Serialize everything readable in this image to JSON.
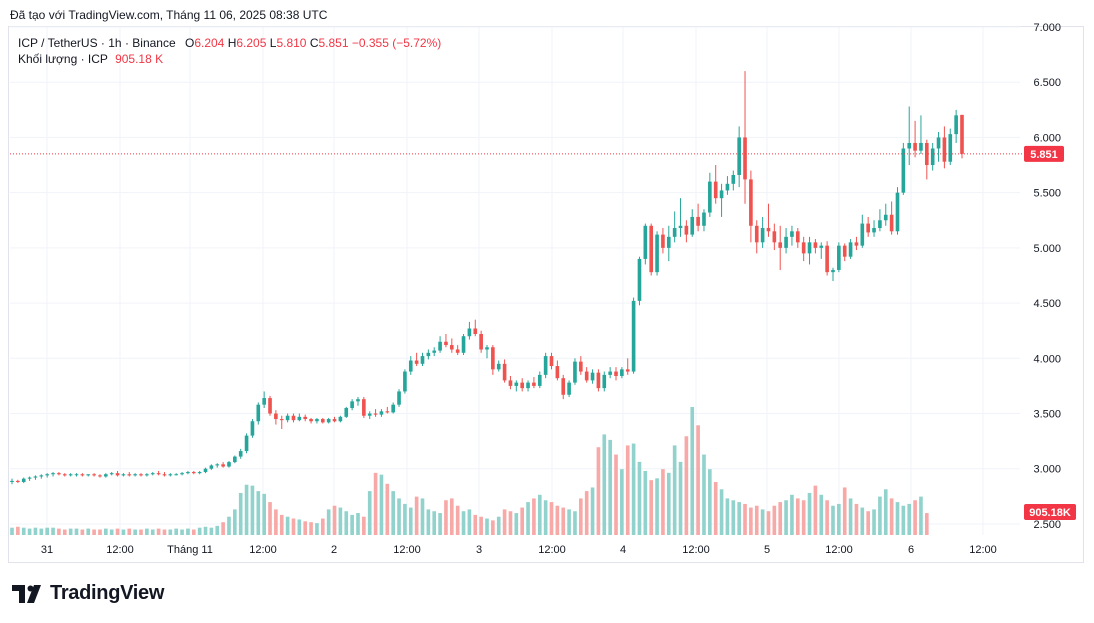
{
  "header": {
    "text": "Đã tạo với TradingView.com, Tháng 11 06, 2025 08:38 UTC"
  },
  "legend": {
    "symbol": "ICP / TetherUS · 1h · Binance",
    "open_label": "O",
    "open": "6.204",
    "high_label": "H",
    "high": "6.205",
    "low_label": "L",
    "low": "5.810",
    "close_label": "C",
    "close": "5.851",
    "change": "−0.355 (−5.72%)",
    "volume_label": "Khối lượng · ICP",
    "volume_value": "905.18 K"
  },
  "logo": {
    "text": "TradingView"
  },
  "colors": {
    "up": "#26a69a",
    "down": "#ef5350",
    "up_vol": "#92d2cc",
    "down_vol": "#f7a9a7",
    "grid": "#f0f3fa"
  },
  "chart_data": {
    "type": "candlestick",
    "title": "ICP / TetherUS · 1h · Binance",
    "y_axis": {
      "min": 2.4,
      "max": 7.0,
      "ticks": [
        "7.000",
        "6.500",
        "6.000",
        "5.500",
        "5.000",
        "4.500",
        "4.000",
        "3.500",
        "3.000",
        "2.500"
      ]
    },
    "x_axis": {
      "ticks": [
        "31",
        "12:00",
        "Tháng 11",
        "12:00",
        "2",
        "12:00",
        "3",
        "12:00",
        "4",
        "12:00",
        "5",
        "12:00",
        "6",
        "12:00"
      ]
    },
    "last_price_label": "5.851",
    "volume_label": "905.18K",
    "candles": [
      {
        "o": 2.88,
        "h": 2.91,
        "l": 2.86,
        "c": 2.89
      },
      {
        "o": 2.89,
        "h": 2.9,
        "l": 2.87,
        "c": 2.88
      },
      {
        "o": 2.88,
        "h": 2.92,
        "l": 2.87,
        "c": 2.91
      },
      {
        "o": 2.91,
        "h": 2.93,
        "l": 2.89,
        "c": 2.92
      },
      {
        "o": 2.92,
        "h": 2.94,
        "l": 2.9,
        "c": 2.93
      },
      {
        "o": 2.93,
        "h": 2.95,
        "l": 2.91,
        "c": 2.94
      },
      {
        "o": 2.94,
        "h": 2.96,
        "l": 2.92,
        "c": 2.95
      },
      {
        "o": 2.95,
        "h": 2.97,
        "l": 2.93,
        "c": 2.96
      },
      {
        "o": 2.96,
        "h": 2.97,
        "l": 2.94,
        "c": 2.95
      },
      {
        "o": 2.95,
        "h": 2.96,
        "l": 2.93,
        "c": 2.94
      },
      {
        "o": 2.94,
        "h": 2.96,
        "l": 2.93,
        "c": 2.95
      },
      {
        "o": 2.95,
        "h": 2.96,
        "l": 2.93,
        "c": 2.95
      },
      {
        "o": 2.95,
        "h": 2.96,
        "l": 2.93,
        "c": 2.94
      },
      {
        "o": 2.94,
        "h": 2.95,
        "l": 2.93,
        "c": 2.95
      },
      {
        "o": 2.95,
        "h": 2.96,
        "l": 2.93,
        "c": 2.94
      },
      {
        "o": 2.94,
        "h": 2.95,
        "l": 2.92,
        "c": 2.93
      },
      {
        "o": 2.93,
        "h": 2.96,
        "l": 2.92,
        "c": 2.95
      },
      {
        "o": 2.95,
        "h": 2.97,
        "l": 2.94,
        "c": 2.96
      },
      {
        "o": 2.96,
        "h": 2.98,
        "l": 2.93,
        "c": 2.94
      },
      {
        "o": 2.94,
        "h": 2.96,
        "l": 2.93,
        "c": 2.95
      },
      {
        "o": 2.95,
        "h": 2.97,
        "l": 2.93,
        "c": 2.94
      },
      {
        "o": 2.94,
        "h": 2.96,
        "l": 2.93,
        "c": 2.95
      },
      {
        "o": 2.95,
        "h": 2.96,
        "l": 2.93,
        "c": 2.94
      },
      {
        "o": 2.94,
        "h": 2.96,
        "l": 2.93,
        "c": 2.95
      },
      {
        "o": 2.95,
        "h": 2.97,
        "l": 2.94,
        "c": 2.96
      },
      {
        "o": 2.96,
        "h": 2.98,
        "l": 2.94,
        "c": 2.95
      },
      {
        "o": 2.95,
        "h": 2.97,
        "l": 2.93,
        "c": 2.94
      },
      {
        "o": 2.94,
        "h": 2.96,
        "l": 2.93,
        "c": 2.95
      },
      {
        "o": 2.95,
        "h": 2.96,
        "l": 2.94,
        "c": 2.95
      },
      {
        "o": 2.95,
        "h": 2.97,
        "l": 2.94,
        "c": 2.96
      },
      {
        "o": 2.96,
        "h": 2.98,
        "l": 2.95,
        "c": 2.97
      },
      {
        "o": 2.97,
        "h": 2.98,
        "l": 2.95,
        "c": 2.96
      },
      {
        "o": 2.96,
        "h": 2.98,
        "l": 2.95,
        "c": 2.97
      },
      {
        "o": 2.97,
        "h": 3.01,
        "l": 2.96,
        "c": 3.0
      },
      {
        "o": 3.0,
        "h": 3.04,
        "l": 2.99,
        "c": 3.03
      },
      {
        "o": 3.03,
        "h": 3.05,
        "l": 3.01,
        "c": 3.04
      },
      {
        "o": 3.04,
        "h": 3.06,
        "l": 3.01,
        "c": 3.02
      },
      {
        "o": 3.02,
        "h": 3.07,
        "l": 3.01,
        "c": 3.06
      },
      {
        "o": 3.06,
        "h": 3.12,
        "l": 3.05,
        "c": 3.11
      },
      {
        "o": 3.11,
        "h": 3.18,
        "l": 3.09,
        "c": 3.16
      },
      {
        "o": 3.16,
        "h": 3.32,
        "l": 3.14,
        "c": 3.3
      },
      {
        "o": 3.3,
        "h": 3.45,
        "l": 3.28,
        "c": 3.43
      },
      {
        "o": 3.43,
        "h": 3.6,
        "l": 3.4,
        "c": 3.58
      },
      {
        "o": 3.58,
        "h": 3.7,
        "l": 3.55,
        "c": 3.64
      },
      {
        "o": 3.64,
        "h": 3.66,
        "l": 3.48,
        "c": 3.5
      },
      {
        "o": 3.5,
        "h": 3.53,
        "l": 3.4,
        "c": 3.45
      },
      {
        "o": 3.45,
        "h": 3.48,
        "l": 3.36,
        "c": 3.44
      },
      {
        "o": 3.44,
        "h": 3.5,
        "l": 3.42,
        "c": 3.48
      },
      {
        "o": 3.48,
        "h": 3.5,
        "l": 3.42,
        "c": 3.44
      },
      {
        "o": 3.44,
        "h": 3.5,
        "l": 3.43,
        "c": 3.47
      },
      {
        "o": 3.47,
        "h": 3.49,
        "l": 3.43,
        "c": 3.45
      },
      {
        "o": 3.45,
        "h": 3.46,
        "l": 3.41,
        "c": 3.43
      },
      {
        "o": 3.43,
        "h": 3.46,
        "l": 3.41,
        "c": 3.45
      },
      {
        "o": 3.45,
        "h": 3.46,
        "l": 3.41,
        "c": 3.42
      },
      {
        "o": 3.42,
        "h": 3.46,
        "l": 3.41,
        "c": 3.45
      },
      {
        "o": 3.45,
        "h": 3.47,
        "l": 3.42,
        "c": 3.43
      },
      {
        "o": 3.43,
        "h": 3.48,
        "l": 3.42,
        "c": 3.47
      },
      {
        "o": 3.47,
        "h": 3.56,
        "l": 3.46,
        "c": 3.55
      },
      {
        "o": 3.55,
        "h": 3.63,
        "l": 3.53,
        "c": 3.61
      },
      {
        "o": 3.61,
        "h": 3.65,
        "l": 3.57,
        "c": 3.63
      },
      {
        "o": 3.63,
        "h": 3.65,
        "l": 3.46,
        "c": 3.48
      },
      {
        "o": 3.48,
        "h": 3.52,
        "l": 3.45,
        "c": 3.5
      },
      {
        "o": 3.5,
        "h": 3.54,
        "l": 3.47,
        "c": 3.49
      },
      {
        "o": 3.49,
        "h": 3.54,
        "l": 3.47,
        "c": 3.52
      },
      {
        "o": 3.52,
        "h": 3.56,
        "l": 3.5,
        "c": 3.51
      },
      {
        "o": 3.51,
        "h": 3.6,
        "l": 3.5,
        "c": 3.58
      },
      {
        "o": 3.58,
        "h": 3.72,
        "l": 3.56,
        "c": 3.7
      },
      {
        "o": 3.7,
        "h": 3.9,
        "l": 3.68,
        "c": 3.88
      },
      {
        "o": 3.88,
        "h": 4.02,
        "l": 3.85,
        "c": 3.98
      },
      {
        "o": 3.98,
        "h": 4.05,
        "l": 3.93,
        "c": 3.95
      },
      {
        "o": 3.95,
        "h": 4.05,
        "l": 3.93,
        "c": 4.02
      },
      {
        "o": 4.02,
        "h": 4.08,
        "l": 3.99,
        "c": 4.05
      },
      {
        "o": 4.05,
        "h": 4.1,
        "l": 4.02,
        "c": 4.07
      },
      {
        "o": 4.07,
        "h": 4.2,
        "l": 4.05,
        "c": 4.15
      },
      {
        "o": 4.15,
        "h": 4.22,
        "l": 4.1,
        "c": 4.12
      },
      {
        "o": 4.12,
        "h": 4.18,
        "l": 4.05,
        "c": 4.08
      },
      {
        "o": 4.08,
        "h": 4.12,
        "l": 4.03,
        "c": 4.05
      },
      {
        "o": 4.05,
        "h": 4.22,
        "l": 4.03,
        "c": 4.2
      },
      {
        "o": 4.2,
        "h": 4.33,
        "l": 4.17,
        "c": 4.27
      },
      {
        "o": 4.27,
        "h": 4.35,
        "l": 4.2,
        "c": 4.22
      },
      {
        "o": 4.22,
        "h": 4.25,
        "l": 4.05,
        "c": 4.08
      },
      {
        "o": 4.08,
        "h": 4.12,
        "l": 4.0,
        "c": 4.1
      },
      {
        "o": 4.1,
        "h": 4.12,
        "l": 3.85,
        "c": 3.9
      },
      {
        "o": 3.9,
        "h": 3.98,
        "l": 3.88,
        "c": 3.95
      },
      {
        "o": 3.95,
        "h": 3.99,
        "l": 3.78,
        "c": 3.8
      },
      {
        "o": 3.8,
        "h": 3.84,
        "l": 3.72,
        "c": 3.75
      },
      {
        "o": 3.75,
        "h": 3.8,
        "l": 3.7,
        "c": 3.78
      },
      {
        "o": 3.78,
        "h": 3.82,
        "l": 3.7,
        "c": 3.73
      },
      {
        "o": 3.73,
        "h": 3.8,
        "l": 3.7,
        "c": 3.78
      },
      {
        "o": 3.78,
        "h": 3.83,
        "l": 3.73,
        "c": 3.75
      },
      {
        "o": 3.75,
        "h": 3.88,
        "l": 3.73,
        "c": 3.85
      },
      {
        "o": 3.85,
        "h": 4.05,
        "l": 3.82,
        "c": 4.02
      },
      {
        "o": 4.02,
        "h": 4.05,
        "l": 3.9,
        "c": 3.93
      },
      {
        "o": 3.93,
        "h": 3.98,
        "l": 3.8,
        "c": 3.82
      },
      {
        "o": 3.82,
        "h": 3.85,
        "l": 3.63,
        "c": 3.67
      },
      {
        "o": 3.67,
        "h": 3.8,
        "l": 3.65,
        "c": 3.78
      },
      {
        "o": 3.78,
        "h": 4.0,
        "l": 3.76,
        "c": 3.97
      },
      {
        "o": 3.97,
        "h": 4.02,
        "l": 3.85,
        "c": 3.88
      },
      {
        "o": 3.88,
        "h": 3.92,
        "l": 3.78,
        "c": 3.8
      },
      {
        "o": 3.8,
        "h": 3.9,
        "l": 3.77,
        "c": 3.87
      },
      {
        "o": 3.87,
        "h": 3.9,
        "l": 3.7,
        "c": 3.73
      },
      {
        "o": 3.73,
        "h": 3.88,
        "l": 3.7,
        "c": 3.85
      },
      {
        "o": 3.85,
        "h": 3.92,
        "l": 3.82,
        "c": 3.88
      },
      {
        "o": 3.88,
        "h": 3.92,
        "l": 3.8,
        "c": 3.84
      },
      {
        "o": 3.84,
        "h": 3.92,
        "l": 3.82,
        "c": 3.9
      },
      {
        "o": 3.9,
        "h": 4.0,
        "l": 3.85,
        "c": 3.88
      },
      {
        "o": 3.88,
        "h": 4.55,
        "l": 3.86,
        "c": 4.52
      },
      {
        "o": 4.52,
        "h": 4.92,
        "l": 4.48,
        "c": 4.9
      },
      {
        "o": 4.9,
        "h": 5.22,
        "l": 4.85,
        "c": 5.2
      },
      {
        "o": 5.2,
        "h": 5.22,
        "l": 4.75,
        "c": 4.78
      },
      {
        "o": 4.78,
        "h": 5.15,
        "l": 4.75,
        "c": 5.12
      },
      {
        "o": 5.12,
        "h": 5.18,
        "l": 4.95,
        "c": 5.0
      },
      {
        "o": 5.0,
        "h": 5.2,
        "l": 4.88,
        "c": 5.1
      },
      {
        "o": 5.1,
        "h": 5.33,
        "l": 5.05,
        "c": 5.18
      },
      {
        "o": 5.18,
        "h": 5.45,
        "l": 5.1,
        "c": 5.2
      },
      {
        "o": 5.2,
        "h": 5.25,
        "l": 5.05,
        "c": 5.12
      },
      {
        "o": 5.12,
        "h": 5.35,
        "l": 5.1,
        "c": 5.28
      },
      {
        "o": 5.28,
        "h": 5.4,
        "l": 5.15,
        "c": 5.2
      },
      {
        "o": 5.2,
        "h": 5.35,
        "l": 5.15,
        "c": 5.32
      },
      {
        "o": 5.32,
        "h": 5.68,
        "l": 5.28,
        "c": 5.6
      },
      {
        "o": 5.6,
        "h": 5.75,
        "l": 5.4,
        "c": 5.45
      },
      {
        "o": 5.45,
        "h": 5.58,
        "l": 5.28,
        "c": 5.52
      },
      {
        "o": 5.52,
        "h": 5.65,
        "l": 5.48,
        "c": 5.58
      },
      {
        "o": 5.58,
        "h": 5.7,
        "l": 5.52,
        "c": 5.66
      },
      {
        "o": 5.66,
        "h": 6.1,
        "l": 5.55,
        "c": 6.0
      },
      {
        "o": 6.0,
        "h": 6.6,
        "l": 5.4,
        "c": 5.62
      },
      {
        "o": 5.62,
        "h": 5.7,
        "l": 5.05,
        "c": 5.2
      },
      {
        "o": 5.2,
        "h": 5.25,
        "l": 4.95,
        "c": 5.05
      },
      {
        "o": 5.05,
        "h": 5.28,
        "l": 5.0,
        "c": 5.18
      },
      {
        "o": 5.18,
        "h": 5.4,
        "l": 5.1,
        "c": 5.15
      },
      {
        "o": 5.15,
        "h": 5.22,
        "l": 4.98,
        "c": 5.05
      },
      {
        "o": 5.05,
        "h": 5.2,
        "l": 4.8,
        "c": 5.0
      },
      {
        "o": 5.0,
        "h": 5.18,
        "l": 4.95,
        "c": 5.1
      },
      {
        "o": 5.1,
        "h": 5.2,
        "l": 5.02,
        "c": 5.15
      },
      {
        "o": 5.15,
        "h": 5.18,
        "l": 5.0,
        "c": 5.05
      },
      {
        "o": 5.05,
        "h": 5.1,
        "l": 4.88,
        "c": 4.95
      },
      {
        "o": 4.95,
        "h": 5.1,
        "l": 4.85,
        "c": 5.05
      },
      {
        "o": 5.05,
        "h": 5.08,
        "l": 4.95,
        "c": 5.0
      },
      {
        "o": 5.0,
        "h": 5.05,
        "l": 4.9,
        "c": 5.02
      },
      {
        "o": 5.02,
        "h": 5.06,
        "l": 4.75,
        "c": 4.78
      },
      {
        "o": 4.78,
        "h": 4.82,
        "l": 4.7,
        "c": 4.8
      },
      {
        "o": 4.8,
        "h": 5.05,
        "l": 4.78,
        "c": 5.02
      },
      {
        "o": 5.02,
        "h": 5.04,
        "l": 4.88,
        "c": 4.92
      },
      {
        "o": 4.92,
        "h": 5.08,
        "l": 4.9,
        "c": 5.05
      },
      {
        "o": 5.05,
        "h": 5.1,
        "l": 4.98,
        "c": 5.02
      },
      {
        "o": 5.02,
        "h": 5.3,
        "l": 5.0,
        "c": 5.22
      },
      {
        "o": 5.22,
        "h": 5.28,
        "l": 5.1,
        "c": 5.14
      },
      {
        "o": 5.14,
        "h": 5.25,
        "l": 5.1,
        "c": 5.18
      },
      {
        "o": 5.18,
        "h": 5.35,
        "l": 5.15,
        "c": 5.25
      },
      {
        "o": 5.25,
        "h": 5.4,
        "l": 5.2,
        "c": 5.3
      },
      {
        "o": 5.3,
        "h": 5.42,
        "l": 5.12,
        "c": 5.15
      },
      {
        "o": 5.15,
        "h": 5.55,
        "l": 5.12,
        "c": 5.5
      },
      {
        "o": 5.5,
        "h": 5.95,
        "l": 5.48,
        "c": 5.9
      },
      {
        "o": 5.9,
        "h": 6.28,
        "l": 5.75,
        "c": 5.95
      },
      {
        "o": 5.95,
        "h": 6.15,
        "l": 5.82,
        "c": 5.88
      },
      {
        "o": 5.88,
        "h": 6.2,
        "l": 5.85,
        "c": 5.95
      },
      {
        "o": 5.95,
        "h": 5.98,
        "l": 5.62,
        "c": 5.75
      },
      {
        "o": 5.75,
        "h": 5.95,
        "l": 5.7,
        "c": 5.9
      },
      {
        "o": 5.9,
        "h": 6.05,
        "l": 5.78,
        "c": 6.0
      },
      {
        "o": 6.0,
        "h": 6.1,
        "l": 5.72,
        "c": 5.78
      },
      {
        "o": 5.78,
        "h": 6.08,
        "l": 5.75,
        "c": 6.03
      },
      {
        "o": 6.03,
        "h": 6.25,
        "l": 5.95,
        "c": 6.2
      },
      {
        "o": 6.204,
        "h": 6.205,
        "l": 5.81,
        "c": 5.851
      }
    ],
    "volumes": [
      8,
      9,
      8,
      7,
      8,
      7,
      8,
      8,
      7,
      6,
      7,
      7,
      6,
      7,
      6,
      6,
      7,
      6,
      7,
      6,
      7,
      6,
      6,
      7,
      6,
      7,
      6,
      6,
      7,
      6,
      7,
      6,
      8,
      9,
      8,
      10,
      14,
      20,
      28,
      46,
      55,
      54,
      48,
      45,
      36,
      28,
      22,
      20,
      18,
      17,
      15,
      14,
      13,
      18,
      28,
      32,
      30,
      26,
      22,
      24,
      20,
      48,
      68,
      66,
      56,
      48,
      40,
      34,
      30,
      42,
      40,
      28,
      26,
      24,
      38,
      40,
      32,
      26,
      28,
      22,
      20,
      18,
      16,
      20,
      28,
      26,
      24,
      30,
      36,
      40,
      44,
      38,
      36,
      32,
      30,
      28,
      26,
      40,
      48,
      52,
      96,
      110,
      104,
      88,
      72,
      98,
      100,
      80,
      70,
      60,
      62,
      72,
      68,
      98,
      80,
      108,
      140,
      120,
      88,
      72,
      58,
      50,
      40,
      38,
      36,
      34,
      30,
      32,
      28,
      26,
      32,
      36,
      38,
      44,
      40,
      38,
      46,
      54,
      44,
      38,
      32,
      34,
      52,
      40,
      34,
      30,
      26,
      28,
      42,
      50,
      40,
      36,
      32,
      34,
      38,
      42,
      24
    ]
  }
}
